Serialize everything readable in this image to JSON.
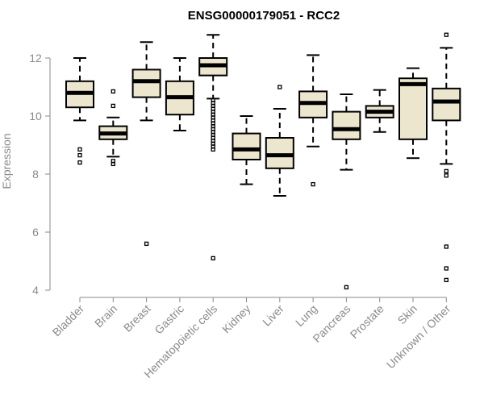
{
  "chart_data": {
    "type": "boxplot",
    "title": "ENSG00000179051 - RCC2",
    "xlabel": "",
    "ylabel": "Expression",
    "ylim": [
      4,
      12.9
    ],
    "yticks": [
      4,
      6,
      8,
      10,
      12
    ],
    "colors": {
      "box_fill": "#ede6cf",
      "stroke": "#000000",
      "axis": "#8a8a8a"
    },
    "categories": [
      "Bladder",
      "Brain",
      "Breast",
      "Gastric",
      "Hematopoietic cells",
      "Kidney",
      "Liver",
      "Lung",
      "Pancreas",
      "Prostate",
      "Skin",
      "Unknown / Other"
    ],
    "boxes": [
      {
        "name": "Bladder",
        "whisker_low": 9.85,
        "q1": 10.3,
        "median": 10.8,
        "q3": 11.2,
        "whisker_high": 12.0,
        "outliers": [
          8.85,
          8.65,
          8.4
        ]
      },
      {
        "name": "Brain",
        "whisker_low": 8.6,
        "q1": 9.2,
        "median": 9.4,
        "q3": 9.65,
        "whisker_high": 9.95,
        "outliers": [
          10.35,
          10.85,
          8.45,
          8.35
        ]
      },
      {
        "name": "Breast",
        "whisker_low": 9.85,
        "q1": 10.65,
        "median": 11.2,
        "q3": 11.6,
        "whisker_high": 12.55,
        "outliers": [
          5.6
        ]
      },
      {
        "name": "Gastric",
        "whisker_low": 9.5,
        "q1": 10.05,
        "median": 10.65,
        "q3": 11.2,
        "whisker_high": 12.0,
        "outliers": []
      },
      {
        "name": "Hematopoietic cells",
        "whisker_low": 10.6,
        "q1": 11.4,
        "median": 11.75,
        "q3": 12.0,
        "whisker_high": 12.8,
        "outliers": [
          10.55,
          10.45,
          10.35,
          10.25,
          10.15,
          10.05,
          9.95,
          9.85,
          9.75,
          9.65,
          9.55,
          9.45,
          9.35,
          9.25,
          9.15,
          9.05,
          8.95,
          8.85,
          5.1
        ]
      },
      {
        "name": "Kidney",
        "whisker_low": 7.65,
        "q1": 8.5,
        "median": 8.85,
        "q3": 9.4,
        "whisker_high": 10.0,
        "outliers": []
      },
      {
        "name": "Liver",
        "whisker_low": 7.25,
        "q1": 8.2,
        "median": 8.65,
        "q3": 9.25,
        "whisker_high": 10.25,
        "outliers": [
          11.0
        ]
      },
      {
        "name": "Lung",
        "whisker_low": 8.95,
        "q1": 9.95,
        "median": 10.45,
        "q3": 10.85,
        "whisker_high": 12.1,
        "outliers": [
          7.65
        ]
      },
      {
        "name": "Pancreas",
        "whisker_low": 8.15,
        "q1": 9.2,
        "median": 9.55,
        "q3": 10.15,
        "whisker_high": 10.75,
        "outliers": [
          4.1
        ]
      },
      {
        "name": "Prostate",
        "whisker_low": 9.45,
        "q1": 9.95,
        "median": 10.15,
        "q3": 10.35,
        "whisker_high": 10.9,
        "outliers": []
      },
      {
        "name": "Skin",
        "whisker_low": 8.55,
        "q1": 9.2,
        "median": 11.1,
        "q3": 11.3,
        "whisker_high": 11.65,
        "outliers": []
      },
      {
        "name": "Unknown / Other",
        "whisker_low": 8.35,
        "q1": 9.85,
        "median": 10.5,
        "q3": 10.95,
        "whisker_high": 12.35,
        "outliers": [
          12.8,
          8.1,
          7.95,
          5.5,
          4.75,
          4.35
        ]
      }
    ]
  }
}
